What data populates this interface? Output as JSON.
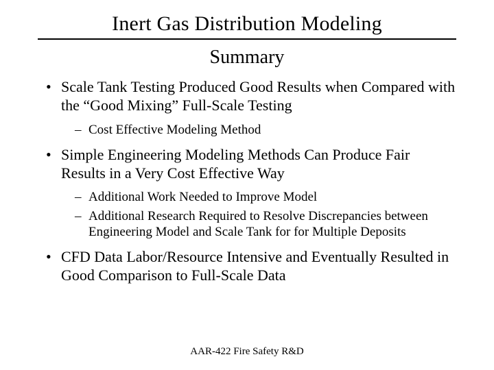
{
  "title": "Inert Gas Distribution Modeling",
  "subtitle": "Summary",
  "bullets": [
    {
      "text": "Scale Tank Testing Produced Good Results when Compared with the “Good Mixing” Full-Scale Testing",
      "sub": [
        "Cost Effective Modeling Method"
      ]
    },
    {
      "text": "Simple Engineering Modeling Methods Can Produce Fair Results in a Very Cost Effective Way",
      "sub": [
        "Additional Work Needed to Improve Model",
        "Additional Research Required to Resolve Discrepancies between Engineering Model and Scale Tank for for Multiple Deposits"
      ]
    },
    {
      "text": "CFD Data Labor/Resource Intensive and Eventually Resulted in Good Comparison to Full-Scale Data",
      "sub": []
    }
  ],
  "footer": "AAR-422 Fire Safety R&D",
  "colors": {
    "background": "#ffffff",
    "text": "#000000",
    "rule": "#000000"
  },
  "typography": {
    "family": "Times New Roman",
    "title_fontsize": 30,
    "subtitle_fontsize": 28,
    "bullet_fontsize": 22,
    "subbullet_fontsize": 19,
    "footer_fontsize": 15
  }
}
